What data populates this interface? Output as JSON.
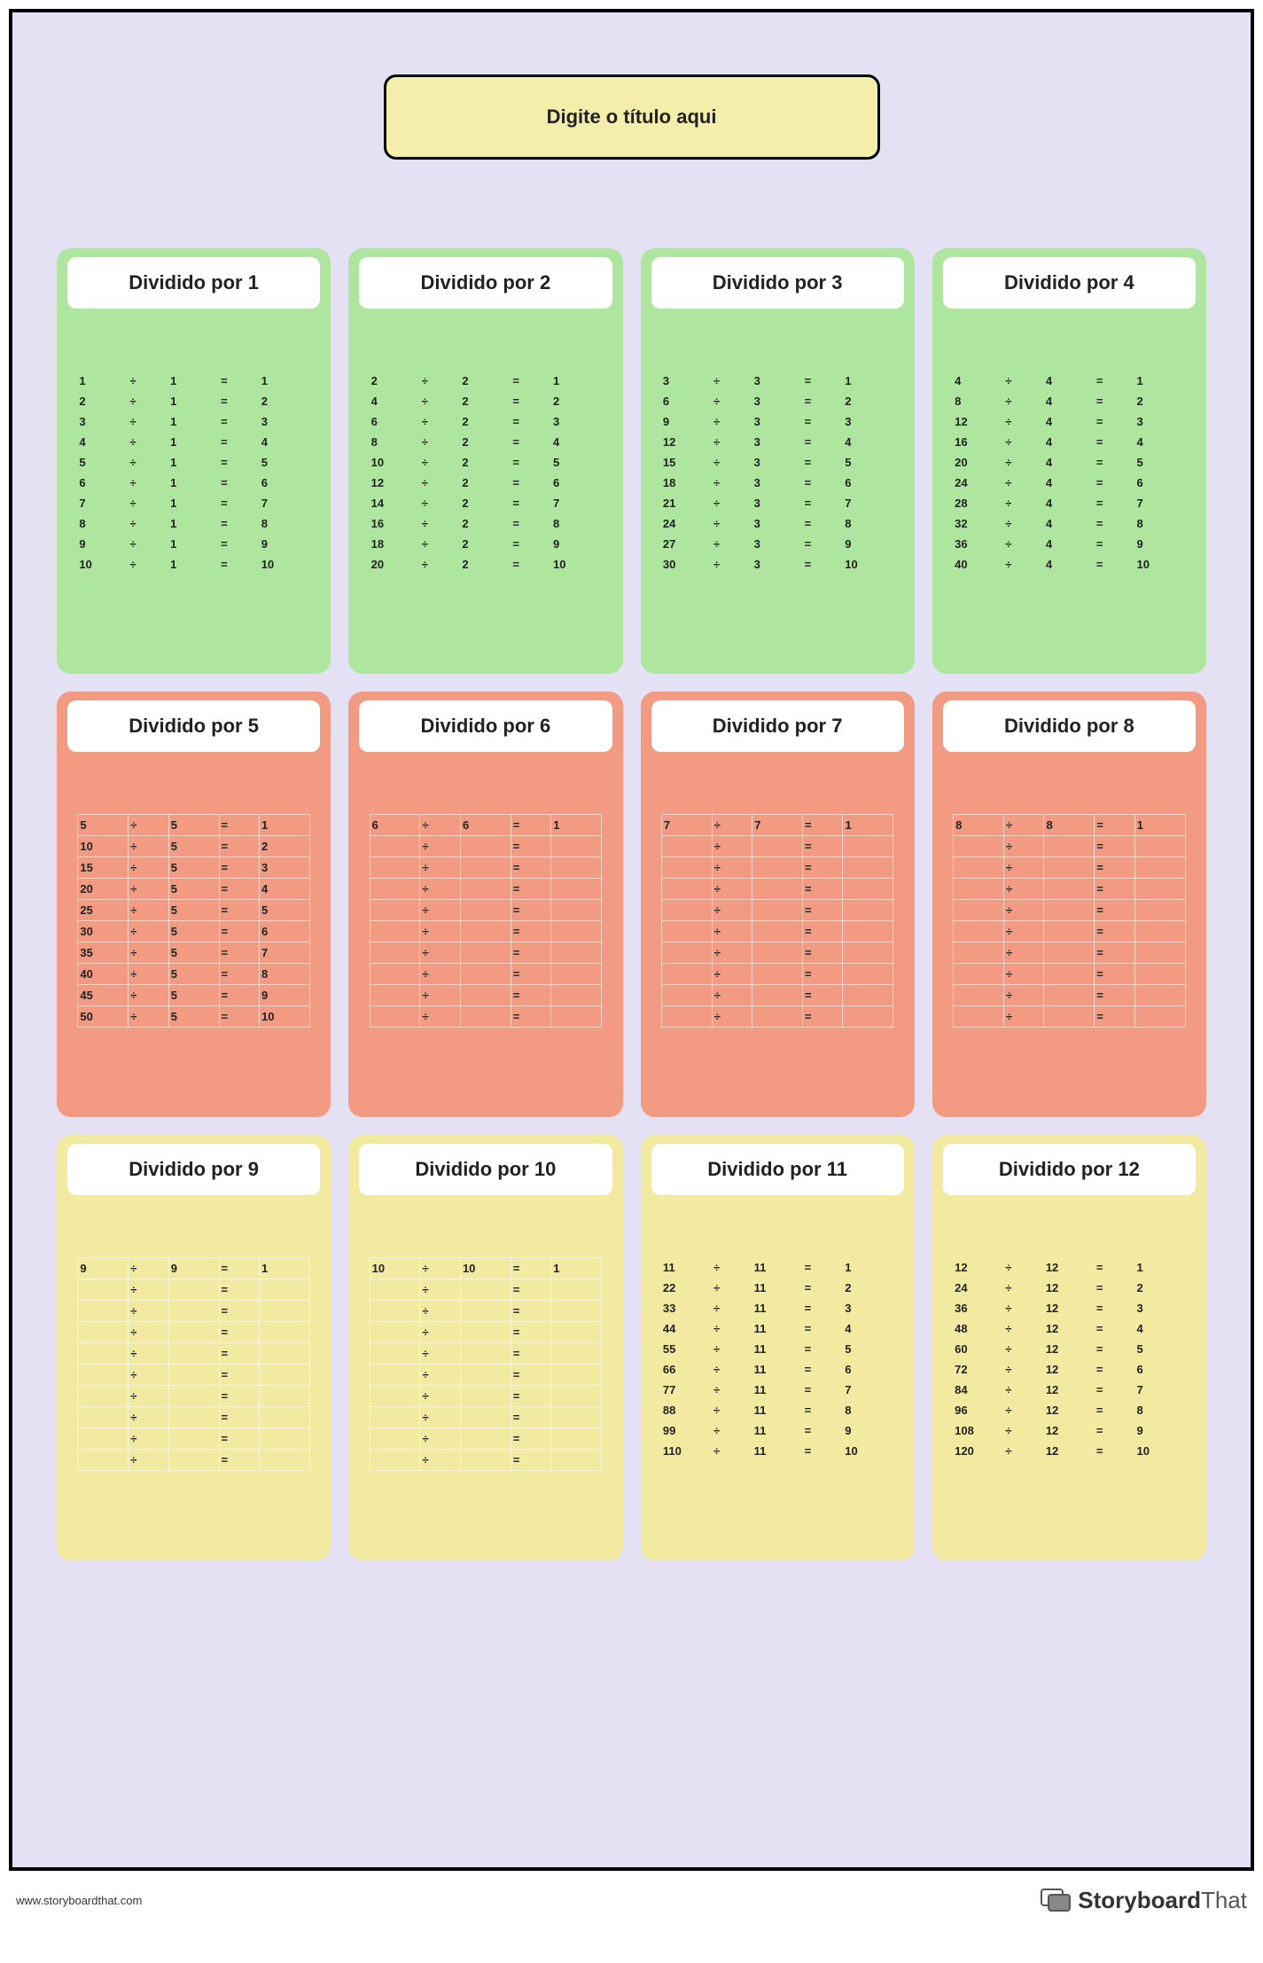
{
  "page": {
    "background_color": "#e4e1f5",
    "title_box": {
      "text": "Digite o título aqui",
      "bg": "#f5eeab",
      "border": "#000000"
    }
  },
  "row_colors": {
    "row1": "#aee6a0",
    "row2": "#f29b82",
    "row3": "#f2eaa0"
  },
  "symbols": {
    "divide": "÷",
    "equals": "="
  },
  "card_title_prefix": "Dividido por",
  "cards": [
    {
      "n": 1,
      "color_key": "row1",
      "bordered": false,
      "rows": [
        {
          "a": "1",
          "b": "1",
          "c": "1"
        },
        {
          "a": "2",
          "b": "1",
          "c": "2"
        },
        {
          "a": "3",
          "b": "1",
          "c": "3"
        },
        {
          "a": "4",
          "b": "1",
          "c": "4"
        },
        {
          "a": "5",
          "b": "1",
          "c": "5"
        },
        {
          "a": "6",
          "b": "1",
          "c": "6"
        },
        {
          "a": "7",
          "b": "1",
          "c": "7"
        },
        {
          "a": "8",
          "b": "1",
          "c": "8"
        },
        {
          "a": "9",
          "b": "1",
          "c": "9"
        },
        {
          "a": "10",
          "b": "1",
          "c": "10"
        }
      ]
    },
    {
      "n": 2,
      "color_key": "row1",
      "bordered": false,
      "rows": [
        {
          "a": "2",
          "b": "2",
          "c": "1"
        },
        {
          "a": "4",
          "b": "2",
          "c": "2"
        },
        {
          "a": "6",
          "b": "2",
          "c": "3"
        },
        {
          "a": "8",
          "b": "2",
          "c": "4"
        },
        {
          "a": "10",
          "b": "2",
          "c": "5"
        },
        {
          "a": "12",
          "b": "2",
          "c": "6"
        },
        {
          "a": "14",
          "b": "2",
          "c": "7"
        },
        {
          "a": "16",
          "b": "2",
          "c": "8"
        },
        {
          "a": "18",
          "b": "2",
          "c": "9"
        },
        {
          "a": "20",
          "b": "2",
          "c": "10"
        }
      ]
    },
    {
      "n": 3,
      "color_key": "row1",
      "bordered": false,
      "rows": [
        {
          "a": "3",
          "b": "3",
          "c": "1"
        },
        {
          "a": "6",
          "b": "3",
          "c": "2"
        },
        {
          "a": "9",
          "b": "3",
          "c": "3"
        },
        {
          "a": "12",
          "b": "3",
          "c": "4"
        },
        {
          "a": "15",
          "b": "3",
          "c": "5"
        },
        {
          "a": "18",
          "b": "3",
          "c": "6"
        },
        {
          "a": "21",
          "b": "3",
          "c": "7"
        },
        {
          "a": "24",
          "b": "3",
          "c": "8"
        },
        {
          "a": "27",
          "b": "3",
          "c": "9"
        },
        {
          "a": "30",
          "b": "3",
          "c": "10"
        }
      ]
    },
    {
      "n": 4,
      "color_key": "row1",
      "bordered": false,
      "rows": [
        {
          "a": "4",
          "b": "4",
          "c": "1"
        },
        {
          "a": "8",
          "b": "4",
          "c": "2"
        },
        {
          "a": "12",
          "b": "4",
          "c": "3"
        },
        {
          "a": "16",
          "b": "4",
          "c": "4"
        },
        {
          "a": "20",
          "b": "4",
          "c": "5"
        },
        {
          "a": "24",
          "b": "4",
          "c": "6"
        },
        {
          "a": "28",
          "b": "4",
          "c": "7"
        },
        {
          "a": "32",
          "b": "4",
          "c": "8"
        },
        {
          "a": "36",
          "b": "4",
          "c": "9"
        },
        {
          "a": "40",
          "b": "4",
          "c": "10"
        }
      ]
    },
    {
      "n": 5,
      "color_key": "row2",
      "bordered": true,
      "rows": [
        {
          "a": "5",
          "b": "5",
          "c": "1"
        },
        {
          "a": "10",
          "b": "5",
          "c": "2"
        },
        {
          "a": "15",
          "b": "5",
          "c": "3"
        },
        {
          "a": "20",
          "b": "5",
          "c": "4"
        },
        {
          "a": "25",
          "b": "5",
          "c": "5"
        },
        {
          "a": "30",
          "b": "5",
          "c": "6"
        },
        {
          "a": "35",
          "b": "5",
          "c": "7"
        },
        {
          "a": "40",
          "b": "5",
          "c": "8"
        },
        {
          "a": "45",
          "b": "5",
          "c": "9"
        },
        {
          "a": "50",
          "b": "5",
          "c": "10"
        }
      ]
    },
    {
      "n": 6,
      "color_key": "row2",
      "bordered": true,
      "rows": [
        {
          "a": "6",
          "b": "6",
          "c": "1"
        },
        {
          "a": "",
          "b": "",
          "c": ""
        },
        {
          "a": "",
          "b": "",
          "c": ""
        },
        {
          "a": "",
          "b": "",
          "c": ""
        },
        {
          "a": "",
          "b": "",
          "c": ""
        },
        {
          "a": "",
          "b": "",
          "c": ""
        },
        {
          "a": "",
          "b": "",
          "c": ""
        },
        {
          "a": "",
          "b": "",
          "c": ""
        },
        {
          "a": "",
          "b": "",
          "c": ""
        },
        {
          "a": "",
          "b": "",
          "c": ""
        }
      ]
    },
    {
      "n": 7,
      "color_key": "row2",
      "bordered": true,
      "rows": [
        {
          "a": "7",
          "b": "7",
          "c": "1"
        },
        {
          "a": "",
          "b": "",
          "c": ""
        },
        {
          "a": "",
          "b": "",
          "c": ""
        },
        {
          "a": "",
          "b": "",
          "c": ""
        },
        {
          "a": "",
          "b": "",
          "c": ""
        },
        {
          "a": "",
          "b": "",
          "c": ""
        },
        {
          "a": "",
          "b": "",
          "c": ""
        },
        {
          "a": "",
          "b": "",
          "c": ""
        },
        {
          "a": "",
          "b": "",
          "c": ""
        },
        {
          "a": "",
          "b": "",
          "c": ""
        }
      ]
    },
    {
      "n": 8,
      "color_key": "row2",
      "bordered": true,
      "rows": [
        {
          "a": "8",
          "b": "8",
          "c": "1"
        },
        {
          "a": "",
          "b": "",
          "c": ""
        },
        {
          "a": "",
          "b": "",
          "c": ""
        },
        {
          "a": "",
          "b": "",
          "c": ""
        },
        {
          "a": "",
          "b": "",
          "c": ""
        },
        {
          "a": "",
          "b": "",
          "c": ""
        },
        {
          "a": "",
          "b": "",
          "c": ""
        },
        {
          "a": "",
          "b": "",
          "c": ""
        },
        {
          "a": "",
          "b": "",
          "c": ""
        },
        {
          "a": "",
          "b": "",
          "c": ""
        }
      ]
    },
    {
      "n": 9,
      "color_key": "row3",
      "bordered": true,
      "rows": [
        {
          "a": "9",
          "b": "9",
          "c": "1"
        },
        {
          "a": "",
          "b": "",
          "c": ""
        },
        {
          "a": "",
          "b": "",
          "c": ""
        },
        {
          "a": "",
          "b": "",
          "c": ""
        },
        {
          "a": "",
          "b": "",
          "c": ""
        },
        {
          "a": "",
          "b": "",
          "c": ""
        },
        {
          "a": "",
          "b": "",
          "c": ""
        },
        {
          "a": "",
          "b": "",
          "c": ""
        },
        {
          "a": "",
          "b": "",
          "c": ""
        },
        {
          "a": "",
          "b": "",
          "c": ""
        }
      ]
    },
    {
      "n": 10,
      "color_key": "row3",
      "bordered": true,
      "rows": [
        {
          "a": "10",
          "b": "10",
          "c": "1"
        },
        {
          "a": "",
          "b": "",
          "c": ""
        },
        {
          "a": "",
          "b": "",
          "c": ""
        },
        {
          "a": "",
          "b": "",
          "c": ""
        },
        {
          "a": "",
          "b": "",
          "c": ""
        },
        {
          "a": "",
          "b": "",
          "c": ""
        },
        {
          "a": "",
          "b": "",
          "c": ""
        },
        {
          "a": "",
          "b": "",
          "c": ""
        },
        {
          "a": "",
          "b": "",
          "c": ""
        },
        {
          "a": "",
          "b": "",
          "c": ""
        }
      ]
    },
    {
      "n": 11,
      "color_key": "row3",
      "bordered": false,
      "rows": [
        {
          "a": "11",
          "b": "11",
          "c": "1"
        },
        {
          "a": "22",
          "b": "11",
          "c": "2"
        },
        {
          "a": "33",
          "b": "11",
          "c": "3"
        },
        {
          "a": "44",
          "b": "11",
          "c": "4"
        },
        {
          "a": "55",
          "b": "11",
          "c": "5"
        },
        {
          "a": "66",
          "b": "11",
          "c": "6"
        },
        {
          "a": "77",
          "b": "11",
          "c": "7"
        },
        {
          "a": "88",
          "b": "11",
          "c": "8"
        },
        {
          "a": "99",
          "b": "11",
          "c": "9"
        },
        {
          "a": "110",
          "b": "11",
          "c": "10"
        }
      ]
    },
    {
      "n": 12,
      "color_key": "row3",
      "bordered": false,
      "rows": [
        {
          "a": "12",
          "b": "12",
          "c": "1"
        },
        {
          "a": "24",
          "b": "12",
          "c": "2"
        },
        {
          "a": "36",
          "b": "12",
          "c": "3"
        },
        {
          "a": "48",
          "b": "12",
          "c": "4"
        },
        {
          "a": "60",
          "b": "12",
          "c": "5"
        },
        {
          "a": "72",
          "b": "12",
          "c": "6"
        },
        {
          "a": "84",
          "b": "12",
          "c": "7"
        },
        {
          "a": "96",
          "b": "12",
          "c": "8"
        },
        {
          "a": "108",
          "b": "12",
          "c": "9"
        },
        {
          "a": "120",
          "b": "12",
          "c": "10"
        }
      ]
    }
  ],
  "footer": {
    "url": "www.storyboardthat.com",
    "brand_bold": "Storyboard",
    "brand_light": "That"
  }
}
